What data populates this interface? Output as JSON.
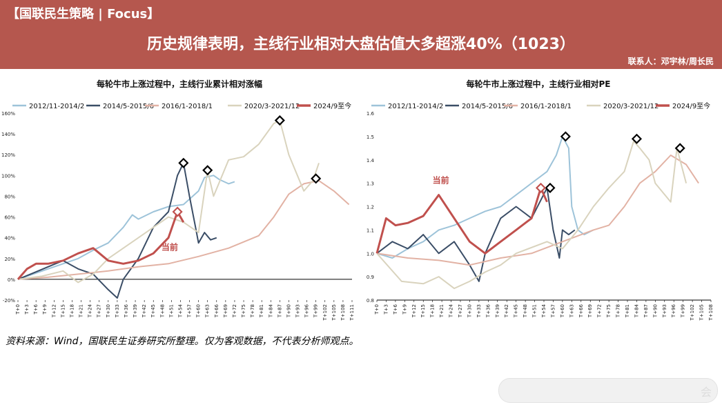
{
  "header": {
    "tag": "【国联民生策略 | Focus】",
    "headline": "历史规律表明，主线行业相对大盘估值大多超涨40%（1023）",
    "contact": "联系人：邓宇林/周长民"
  },
  "colors": {
    "banner": "#b5574e",
    "s1": "#9dc3d9",
    "s2": "#3a4d66",
    "s3": "#e2b2a4",
    "s4": "#d9d3bd",
    "s5": "#c0504d"
  },
  "source_note": "资料来源：Wind，国联民生证券研究所整理。仅为客观数据，不代表分析师观点。",
  "watermark": "会",
  "chart_data": [
    {
      "type": "line",
      "title": "每轮牛市上涨过程中，主线行业累计相对涨幅",
      "ylim": [
        -20,
        160
      ],
      "yticks": [
        "-20%",
        "0%",
        "20%",
        "40%",
        "60%",
        "80%",
        "100%",
        "120%",
        "140%",
        "160%"
      ],
      "xticks": [
        "T+0",
        "T+3",
        "T+6",
        "T+9",
        "T+12",
        "T+15",
        "T+18",
        "T+21",
        "T+24",
        "T+27",
        "T+30",
        "T+33",
        "T+36",
        "T+39",
        "T+42",
        "T+45",
        "T+48",
        "T+51",
        "T+54",
        "T+57",
        "T+60",
        "T+63",
        "T+66",
        "T+69",
        "T+72",
        "T+75",
        "T+78",
        "T+81",
        "T+84",
        "T+87",
        "T+90",
        "T+93",
        "T+96",
        "T+99",
        "T+102",
        "T+105",
        "T+108",
        "T+111"
      ],
      "annotation": "当前",
      "series": [
        {
          "name": "2012/11-2014/2",
          "x": [
            0,
            5,
            10,
            15,
            20,
            25,
            30,
            35,
            38,
            40,
            45,
            50,
            55,
            60,
            62,
            65,
            67,
            70,
            72
          ],
          "y": [
            0,
            5,
            10,
            15,
            20,
            28,
            35,
            50,
            62,
            58,
            65,
            70,
            72,
            85,
            98,
            100,
            96,
            92,
            94
          ],
          "marker": null
        },
        {
          "name": "2014/5-2015/6",
          "x": [
            0,
            5,
            10,
            15,
            20,
            25,
            30,
            33,
            35,
            40,
            45,
            50,
            53,
            55,
            57,
            59,
            60,
            62,
            64,
            66
          ],
          "y": [
            0,
            6,
            12,
            18,
            10,
            5,
            -10,
            -18,
            0,
            20,
            50,
            65,
            100,
            112,
            80,
            50,
            35,
            45,
            38,
            40
          ],
          "marker": [
            55,
            112
          ]
        },
        {
          "name": "2016/1-2018/1",
          "x": [
            0,
            10,
            20,
            30,
            40,
            50,
            60,
            70,
            80,
            85,
            90,
            95,
            100,
            105,
            110
          ],
          "y": [
            0,
            2,
            5,
            8,
            12,
            15,
            22,
            30,
            42,
            60,
            82,
            92,
            95,
            85,
            72
          ],
          "marker": null
        },
        {
          "name": "2020/3-2021/12",
          "x": [
            0,
            8,
            15,
            20,
            25,
            30,
            40,
            45,
            50,
            55,
            60,
            63,
            65,
            70,
            75,
            80,
            85,
            87,
            90,
            95,
            98,
            100
          ],
          "y": [
            0,
            3,
            8,
            -3,
            5,
            20,
            40,
            50,
            60,
            55,
            45,
            105,
            80,
            115,
            118,
            130,
            150,
            153,
            120,
            85,
            95,
            112
          ],
          "marker": [
            87,
            153
          ]
        },
        {
          "name": "2024/9至今",
          "x": [
            0,
            3,
            6,
            10,
            15,
            20,
            25,
            30,
            35,
            40,
            45,
            50,
            53,
            55
          ],
          "y": [
            0,
            10,
            15,
            15,
            18,
            25,
            30,
            18,
            15,
            18,
            25,
            40,
            65,
            55
          ],
          "marker": [
            53,
            65
          ]
        }
      ],
      "extra_markers": [
        [
          63,
          105
        ],
        [
          99,
          97
        ]
      ]
    },
    {
      "type": "line",
      "title": "每轮牛市上涨过程中，主线行业相对PE",
      "ylim": [
        0.8,
        1.6
      ],
      "yticks": [
        "0.8",
        "0.9",
        "1.0",
        "1.1",
        "1.2",
        "1.3",
        "1.4",
        "1.5",
        "1.6"
      ],
      "xticks": [
        "T+0",
        "T+3",
        "T+6",
        "T+9",
        "T+12",
        "T+15",
        "T+18",
        "T+21",
        "T+24",
        "T+27",
        "T+30",
        "T+33",
        "T+36",
        "T+39",
        "T+42",
        "T+45",
        "T+48",
        "T+51",
        "T+54",
        "T+57",
        "T+60",
        "T+63",
        "T+66",
        "T+69",
        "T+72",
        "T+75",
        "T+78",
        "T+81",
        "T+84",
        "T+87",
        "T+90",
        "T+93",
        "T+96",
        "T+99",
        "T+102",
        "T+105",
        "T+108"
      ],
      "annotation": "当前",
      "series": [
        {
          "name": "2012/11-2014/2",
          "x": [
            0,
            5,
            10,
            15,
            20,
            25,
            30,
            35,
            40,
            45,
            50,
            55,
            58,
            60,
            62,
            63,
            65,
            67,
            70
          ],
          "y": [
            1.0,
            0.98,
            1.02,
            1.05,
            1.1,
            1.12,
            1.15,
            1.18,
            1.2,
            1.25,
            1.3,
            1.35,
            1.42,
            1.5,
            1.45,
            1.2,
            1.1,
            1.08,
            1.1
          ],
          "marker": null
        },
        {
          "name": "2014/5-2015/6",
          "x": [
            0,
            5,
            10,
            15,
            20,
            25,
            30,
            33,
            35,
            40,
            45,
            50,
            55,
            57,
            59,
            60,
            62,
            64
          ],
          "y": [
            1.0,
            1.05,
            1.02,
            1.08,
            1.0,
            1.05,
            0.95,
            0.88,
            1.0,
            1.15,
            1.2,
            1.15,
            1.28,
            1.1,
            0.98,
            1.1,
            1.08,
            1.1
          ],
          "marker": [
            56,
            1.28
          ]
        },
        {
          "name": "2016/1-2018/1",
          "x": [
            0,
            10,
            20,
            30,
            40,
            50,
            60,
            70,
            75,
            80,
            85,
            90,
            95,
            100,
            104
          ],
          "y": [
            1.0,
            0.98,
            0.97,
            0.95,
            0.98,
            1.0,
            1.05,
            1.1,
            1.12,
            1.2,
            1.3,
            1.35,
            1.42,
            1.38,
            1.3
          ],
          "marker": null
        },
        {
          "name": "2020/3-2021/12",
          "x": [
            0,
            8,
            15,
            20,
            25,
            30,
            35,
            40,
            45,
            55,
            60,
            65,
            70,
            75,
            80,
            83,
            85,
            88,
            90,
            95,
            97,
            100
          ],
          "y": [
            1.0,
            0.88,
            0.87,
            0.9,
            0.85,
            0.88,
            0.92,
            0.95,
            1.0,
            1.05,
            1.02,
            1.1,
            1.2,
            1.28,
            1.35,
            1.48,
            1.45,
            1.4,
            1.3,
            1.22,
            1.45,
            1.3
          ],
          "marker": [
            84,
            1.49
          ]
        },
        {
          "name": "2024/9至今",
          "x": [
            0,
            3,
            6,
            10,
            15,
            20,
            25,
            30,
            35,
            40,
            45,
            50,
            53,
            55
          ],
          "y": [
            1.0,
            1.15,
            1.12,
            1.13,
            1.16,
            1.25,
            1.15,
            1.05,
            1.0,
            1.05,
            1.1,
            1.15,
            1.28,
            1.22
          ],
          "marker": [
            53,
            1.28
          ]
        }
      ],
      "extra_markers": [
        [
          61,
          1.5
        ],
        [
          98,
          1.45
        ]
      ]
    }
  ]
}
